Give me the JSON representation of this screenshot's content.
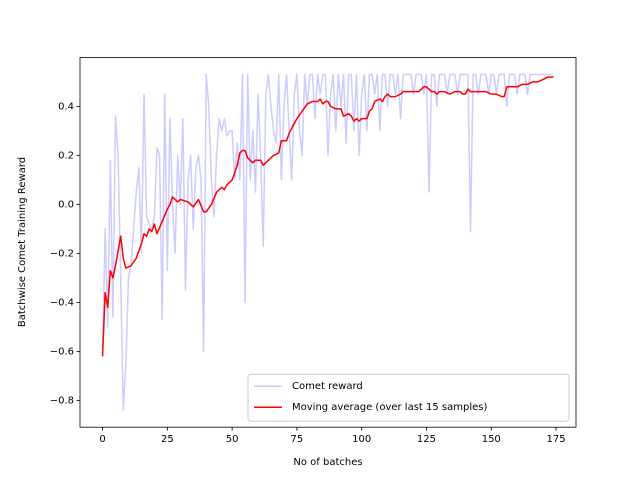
{
  "chart_data": {
    "type": "line",
    "xlabel": "No of batches",
    "ylabel": "Batchwise Comet Training Reward",
    "xlim": [
      -8.7,
      182.7
    ],
    "ylim": [
      -0.909,
      0.599
    ],
    "xticks": [
      0,
      25,
      50,
      75,
      100,
      125,
      150,
      175
    ],
    "yticks": [
      {
        "value": -0.8,
        "label": "−0.8"
      },
      {
        "value": -0.6,
        "label": "−0.6"
      },
      {
        "value": -0.4,
        "label": "−0.4"
      },
      {
        "value": -0.2,
        "label": "−0.2"
      },
      {
        "value": 0,
        "label": "0.0"
      },
      {
        "value": 0.2,
        "label": "0.2"
      },
      {
        "value": 0.4,
        "label": "0.4"
      }
    ],
    "legend": "lower right",
    "series": [
      {
        "name": "Comet reward",
        "color": "#ccccff",
        "x": [
          0,
          1,
          2,
          3,
          4,
          5,
          6,
          7,
          8,
          9,
          10,
          11,
          12,
          13,
          14,
          15,
          16,
          17,
          18,
          19,
          20,
          21,
          22,
          23,
          24,
          25,
          26,
          27,
          28,
          29,
          30,
          31,
          32,
          33,
          34,
          35,
          36,
          37,
          38,
          39,
          40,
          41,
          42,
          43,
          44,
          45,
          46,
          47,
          48,
          49,
          50,
          51,
          52,
          53,
          54,
          55,
          56,
          57,
          58,
          59,
          60,
          61,
          62,
          63,
          64,
          65,
          66,
          67,
          68,
          69,
          70,
          71,
          72,
          73,
          74,
          75,
          76,
          77,
          78,
          79,
          80,
          81,
          82,
          83,
          84,
          85,
          86,
          87,
          88,
          89,
          90,
          91,
          92,
          93,
          94,
          95,
          96,
          97,
          98,
          99,
          100,
          101,
          102,
          103,
          104,
          105,
          106,
          107,
          108,
          109,
          110,
          111,
          112,
          113,
          114,
          115,
          116,
          117,
          118,
          119,
          120,
          121,
          122,
          123,
          124,
          125,
          126,
          127,
          128,
          129,
          130,
          131,
          132,
          133,
          134,
          135,
          136,
          137,
          138,
          139,
          140,
          141,
          142,
          143,
          144,
          145,
          146,
          147,
          148,
          149,
          150,
          151,
          152,
          153,
          154,
          155,
          156,
          157,
          158,
          159,
          160,
          161,
          162,
          163,
          164,
          165,
          166,
          167,
          168,
          169,
          170,
          171,
          172,
          173,
          174
        ],
        "values": [
          -0.62,
          -0.1,
          -0.5,
          0.18,
          -0.46,
          0.36,
          0.2,
          -0.3,
          -0.84,
          -0.65,
          -0.3,
          -0.25,
          -0.1,
          0.05,
          0.15,
          -0.2,
          0.45,
          -0.05,
          -0.08,
          -0.1,
          -0.05,
          0.23,
          0.2,
          -0.47,
          0.45,
          -0.27,
          0.35,
          0.0,
          -0.2,
          0.2,
          0.0,
          0.35,
          -0.35,
          0.1,
          0.2,
          -0.1,
          0.15,
          0.2,
          0.1,
          -0.6,
          0.53,
          0.4,
          0.1,
          -0.05,
          0.2,
          0.35,
          0.3,
          0.35,
          0.28,
          0.3,
          0.3,
          0.1,
          0.25,
          0.1,
          0.53,
          -0.4,
          0.53,
          0.1,
          0.3,
          0.05,
          0.45,
          0.2,
          -0.17,
          0.45,
          0.53,
          0.4,
          0.3,
          0.25,
          0.53,
          0.1,
          0.4,
          0.53,
          0.3,
          0.1,
          0.45,
          0.53,
          0.3,
          0.2,
          0.53,
          0.4,
          0.53,
          0.53,
          0.35,
          0.53,
          0.45,
          0.53,
          0.53,
          0.2,
          0.45,
          0.53,
          0.3,
          0.53,
          0.4,
          0.53,
          0.25,
          0.53,
          0.53,
          0.3,
          0.53,
          0.2,
          0.45,
          0.53,
          0.3,
          0.53,
          0.53,
          0.45,
          0.53,
          0.3,
          0.53,
          0.53,
          0.4,
          0.53,
          0.53,
          0.45,
          0.53,
          0.35,
          0.53,
          0.53,
          0.53,
          0.53,
          0.45,
          0.53,
          0.53,
          0.53,
          0.45,
          0.53,
          0.05,
          0.53,
          0.53,
          0.4,
          0.53,
          0.53,
          0.53,
          0.45,
          0.53,
          0.53,
          0.53,
          0.45,
          0.53,
          0.53,
          0.53,
          0.53,
          -0.11,
          0.53,
          0.53,
          0.45,
          0.53,
          0.53,
          0.53,
          0.45,
          0.53,
          0.53,
          0.45,
          0.53,
          0.53,
          0.53,
          0.4,
          0.53,
          0.53,
          0.53,
          0.45,
          0.53,
          0.53,
          0.53,
          0.45,
          0.53,
          0.53,
          0.53,
          0.53,
          0.53,
          0.53,
          0.53,
          0.53,
          0.53,
          0.53
        ]
      },
      {
        "name": "Moving average (over last 15 samples)",
        "color": "#ff0000",
        "x": [
          0,
          1,
          2,
          3,
          4,
          5,
          7,
          8,
          9,
          11,
          13,
          15,
          16,
          17,
          18,
          19,
          20,
          21,
          23,
          25,
          26,
          27,
          29,
          30,
          33,
          35,
          37,
          39,
          40,
          42,
          44,
          46,
          47,
          48,
          50,
          52,
          53,
          54,
          55,
          56,
          57,
          58,
          59,
          61,
          62,
          64,
          66,
          68,
          69,
          71,
          72,
          74,
          75,
          77,
          79,
          81,
          83,
          84,
          85,
          86,
          87,
          88,
          90,
          92,
          93,
          95,
          96,
          97,
          98,
          99,
          100,
          102,
          103,
          104,
          105,
          107,
          108,
          109,
          110,
          111,
          113,
          115,
          116,
          118,
          120,
          122,
          124,
          125,
          126,
          127,
          128,
          129,
          130,
          132,
          134,
          136,
          138,
          139,
          140,
          141,
          142,
          144,
          146,
          148,
          150,
          152,
          154,
          155,
          156,
          157,
          158,
          160,
          162,
          164,
          166,
          168,
          170,
          172,
          174
        ],
        "values": [
          -0.62,
          -0.36,
          -0.42,
          -0.27,
          -0.3,
          -0.25,
          -0.13,
          -0.22,
          -0.26,
          -0.25,
          -0.22,
          -0.16,
          -0.12,
          -0.13,
          -0.1,
          -0.11,
          -0.08,
          -0.12,
          -0.07,
          -0.02,
          0.0,
          0.03,
          0.01,
          0.02,
          0.01,
          -0.01,
          0.02,
          -0.03,
          -0.03,
          0.0,
          0.05,
          0.07,
          0.06,
          0.08,
          0.1,
          0.16,
          0.21,
          0.22,
          0.22,
          0.19,
          0.18,
          0.17,
          0.18,
          0.18,
          0.16,
          0.18,
          0.2,
          0.21,
          0.26,
          0.26,
          0.29,
          0.33,
          0.35,
          0.38,
          0.41,
          0.42,
          0.42,
          0.43,
          0.41,
          0.42,
          0.42,
          0.4,
          0.39,
          0.39,
          0.36,
          0.37,
          0.36,
          0.34,
          0.35,
          0.34,
          0.35,
          0.35,
          0.38,
          0.39,
          0.42,
          0.43,
          0.42,
          0.44,
          0.45,
          0.44,
          0.44,
          0.45,
          0.46,
          0.46,
          0.46,
          0.46,
          0.48,
          0.48,
          0.47,
          0.46,
          0.46,
          0.45,
          0.46,
          0.46,
          0.45,
          0.46,
          0.46,
          0.45,
          0.45,
          0.47,
          0.46,
          0.46,
          0.46,
          0.46,
          0.45,
          0.45,
          0.44,
          0.44,
          0.48,
          0.48,
          0.48,
          0.48,
          0.49,
          0.49,
          0.5,
          0.5,
          0.51,
          0.52,
          0.52
        ]
      }
    ]
  }
}
